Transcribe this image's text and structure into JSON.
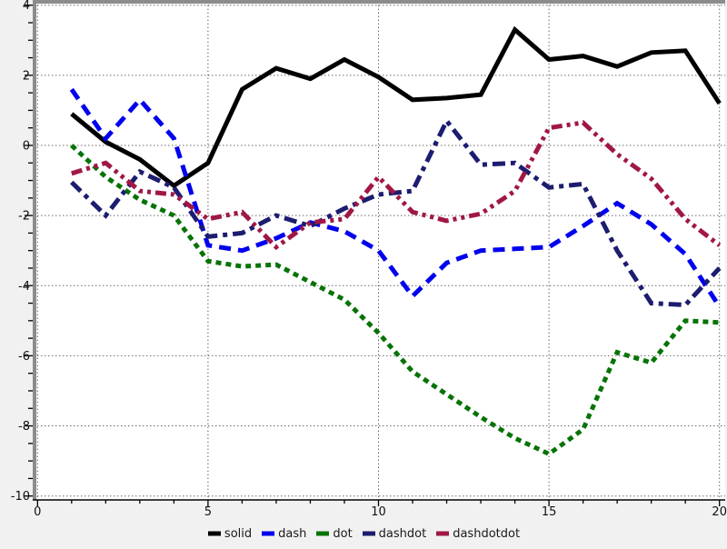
{
  "chart_data": {
    "type": "line",
    "title": "",
    "xlabel": "",
    "ylabel": "",
    "xlim": [
      0,
      20.2
    ],
    "ylim": [
      -10,
      4
    ],
    "x_ticks": [
      0,
      5,
      10,
      15,
      20
    ],
    "y_ticks": [
      4,
      2,
      0,
      -2,
      -4,
      -6,
      -8,
      -10
    ],
    "x_minor_step": 1,
    "y_minor_step": 0.5,
    "grid": "dotted lines on major ticks",
    "legend_position": "bottom-center",
    "background_color": "#f1f1f1",
    "plot_background_color": "#ffffff",
    "axis_frame_color": "#8c8c8c",
    "x": [
      1,
      2,
      3,
      4,
      5,
      6,
      7,
      8,
      9,
      10,
      11,
      12,
      13,
      14,
      15,
      16,
      17,
      18,
      19,
      20
    ],
    "series": [
      {
        "name": "solid",
        "style": "solid",
        "color": "#000000",
        "values": [
          0.9,
          0.1,
          -0.4,
          -1.15,
          -0.5,
          1.6,
          2.2,
          1.9,
          2.45,
          1.95,
          1.3,
          1.35,
          1.45,
          3.3,
          2.45,
          2.55,
          2.25,
          2.65,
          2.7,
          1.2
        ]
      },
      {
        "name": "dash",
        "style": "dash",
        "color": "#0000ee",
        "values": [
          1.6,
          0.2,
          1.3,
          0.2,
          -2.85,
          -3.0,
          -2.65,
          -2.2,
          -2.45,
          -3.0,
          -4.3,
          -3.35,
          -3.0,
          -2.95,
          -2.9,
          -2.3,
          -1.65,
          -2.25,
          -3.1,
          -4.6
        ]
      },
      {
        "name": "dot",
        "style": "dot",
        "color": "#067306",
        "values": [
          0.0,
          -0.9,
          -1.55,
          -2.0,
          -3.3,
          -3.45,
          -3.4,
          -3.9,
          -4.4,
          -5.35,
          -6.45,
          -7.1,
          -7.75,
          -8.35,
          -8.8,
          -8.1,
          -5.9,
          -6.2,
          -5.0,
          -5.05
        ]
      },
      {
        "name": "dashdot",
        "style": "dashdot",
        "color": "#1c1c70",
        "values": [
          -1.05,
          -2.0,
          -0.75,
          -1.2,
          -2.6,
          -2.5,
          -2.0,
          -2.3,
          -1.8,
          -1.4,
          -1.3,
          0.7,
          -0.55,
          -0.5,
          -1.2,
          -1.1,
          -3.0,
          -4.5,
          -4.55,
          -3.5
        ]
      },
      {
        "name": "dashdotdot",
        "style": "dashdotdot",
        "color": "#a01745",
        "values": [
          -0.8,
          -0.5,
          -1.3,
          -1.4,
          -2.1,
          -1.9,
          -2.9,
          -2.2,
          -2.1,
          -0.9,
          -1.9,
          -2.15,
          -1.95,
          -1.3,
          0.5,
          0.65,
          -0.25,
          -0.95,
          -2.1,
          -2.85
        ]
      }
    ]
  }
}
